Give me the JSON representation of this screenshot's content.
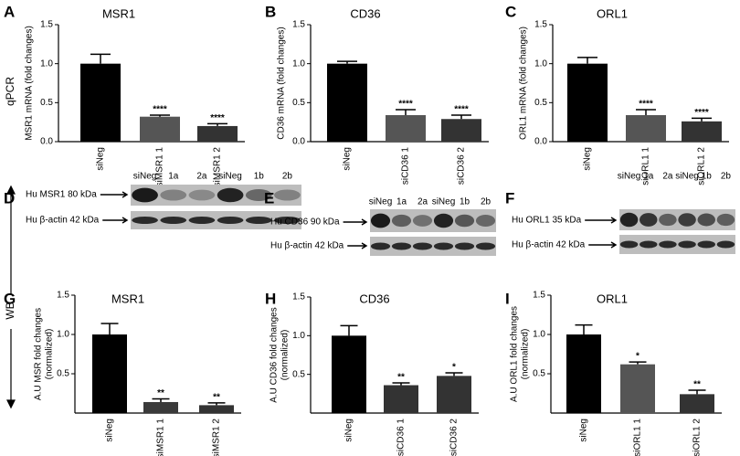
{
  "side_labels": {
    "qpcr": "qPCR",
    "wb": "WB"
  },
  "chart_data": [
    {
      "type": "bar",
      "panel": "A",
      "title": "MSR1",
      "ylabel": "MSR1 mRNA (fold changes)",
      "categories": [
        "siNeg",
        "siMSR1 1",
        "siMSR1 2"
      ],
      "values": [
        1.0,
        0.32,
        0.2
      ],
      "errors": [
        0.12,
        0.02,
        0.03
      ],
      "colors": [
        "#000000",
        "#555555",
        "#333333"
      ],
      "annotations": [
        {
          "x": "siMSR1 1",
          "text": "****"
        },
        {
          "x": "siMSR1 2",
          "text": "****"
        }
      ],
      "ylim": [
        0,
        1.5
      ],
      "yticks": [
        {
          "value": 0,
          "label": "0.0"
        },
        0.5,
        {
          "value": 1,
          "label": "1.0"
        },
        1.5
      ]
    },
    {
      "type": "bar",
      "panel": "B",
      "title": "CD36",
      "ylabel": "CD36 mRNA (fold changes)",
      "categories": [
        "siNeg",
        "siCD36 1",
        "siCD36 2"
      ],
      "values": [
        1.0,
        0.34,
        0.29
      ],
      "errors": [
        0.03,
        0.07,
        0.05
      ],
      "colors": [
        "#000000",
        "#555555",
        "#333333"
      ],
      "annotations": [
        {
          "x": "siCD36 1",
          "text": "****"
        },
        {
          "x": "siCD36 2",
          "text": "****"
        }
      ],
      "ylim": [
        0,
        1.5
      ],
      "yticks": [
        {
          "value": 0,
          "label": "0.0"
        },
        0.5,
        {
          "value": 1,
          "label": "1.0"
        },
        1.5
      ]
    },
    {
      "type": "bar",
      "panel": "C",
      "title": "ORL1",
      "ylabel": "ORL1 mRNA (fold changes)",
      "categories": [
        "siNeg",
        "siORL1 1",
        "siORL1 2"
      ],
      "values": [
        1.0,
        0.34,
        0.26
      ],
      "errors": [
        0.08,
        0.07,
        0.04
      ],
      "colors": [
        "#000000",
        "#555555",
        "#333333"
      ],
      "annotations": [
        {
          "x": "siORL1 1",
          "text": "****"
        },
        {
          "x": "siORL1 2",
          "text": "****"
        }
      ],
      "ylim": [
        0,
        1.5
      ],
      "yticks": [
        {
          "value": 0,
          "label": "0.0"
        },
        0.5,
        {
          "value": 1,
          "label": "1.0"
        },
        1.5
      ]
    },
    {
      "type": "bar",
      "panel": "G",
      "title": "MSR1",
      "ylabel": [
        "A.U MSR fold changes",
        "(normalized)"
      ],
      "categories": [
        "siNeg",
        "siMSR1 1",
        "siMSR1 2"
      ],
      "values": [
        1.0,
        0.14,
        0.1
      ],
      "errors": [
        0.14,
        0.04,
        0.03
      ],
      "colors": [
        "#000000",
        "#3a3a3a",
        "#333333"
      ],
      "annotations": [
        {
          "x": "siMSR1 1",
          "text": "**"
        },
        {
          "x": "siMSR1 2",
          "text": "**"
        }
      ],
      "ylim": [
        0,
        1.5
      ],
      "yticks": [
        0.5,
        {
          "value": 1,
          "label": "1.0"
        },
        1.5
      ]
    },
    {
      "type": "bar",
      "panel": "H",
      "title": "CD36",
      "ylabel": [
        "A.U CD36 fold changes",
        "(normalized)"
      ],
      "categories": [
        "siNeg",
        "siCD36 1",
        "siCD36 2"
      ],
      "values": [
        1.0,
        0.36,
        0.48
      ],
      "errors": [
        0.13,
        0.03,
        0.04
      ],
      "colors": [
        "#000000",
        "#333333",
        "#333333"
      ],
      "annotations": [
        {
          "x": "siCD36 1",
          "text": "**"
        },
        {
          "x": "siCD36 2",
          "text": "*"
        }
      ],
      "ylim": [
        0,
        1.5
      ],
      "yticks": [
        0.5,
        {
          "value": 1,
          "label": "1.0"
        },
        1.5
      ]
    },
    {
      "type": "bar",
      "panel": "I",
      "title": "ORL1",
      "ylabel": [
        "A.U ORL1 fold changes",
        "(normalized)"
      ],
      "categories": [
        "siNeg",
        "siORL1 1",
        "siORL1 2"
      ],
      "values": [
        1.0,
        0.62,
        0.24
      ],
      "errors": [
        0.12,
        0.03,
        0.05
      ],
      "colors": [
        "#000000",
        "#555555",
        "#333333"
      ],
      "annotations": [
        {
          "x": "siORL1 1",
          "text": "*"
        },
        {
          "x": "siORL1 2",
          "text": "**"
        }
      ],
      "ylim": [
        0,
        1.5
      ],
      "yticks": [
        0.5,
        {
          "value": 1,
          "label": "1.0"
        },
        1.5
      ]
    }
  ],
  "blots": [
    {
      "panel": "D",
      "target": "Hu MSR1 80 kDa",
      "control": "Hu β-actin 42 kDa",
      "lanes": [
        "siNeg",
        "1a",
        "2a",
        "siNeg",
        "1b",
        "2b"
      ]
    },
    {
      "panel": "E",
      "target": "Hu CD36 90 kDa",
      "control": "Hu β-actin 42 kDa",
      "lanes": [
        "siNeg",
        "1a",
        "2a",
        "siNeg",
        "1b",
        "2b"
      ]
    },
    {
      "panel": "F",
      "target": "Hu ORL1 35 kDa",
      "control": "Hu β-actin 42 kDa",
      "lanes": [
        "siNeg",
        "1a",
        "2a",
        "siNeg",
        "1b",
        "2b"
      ]
    }
  ]
}
